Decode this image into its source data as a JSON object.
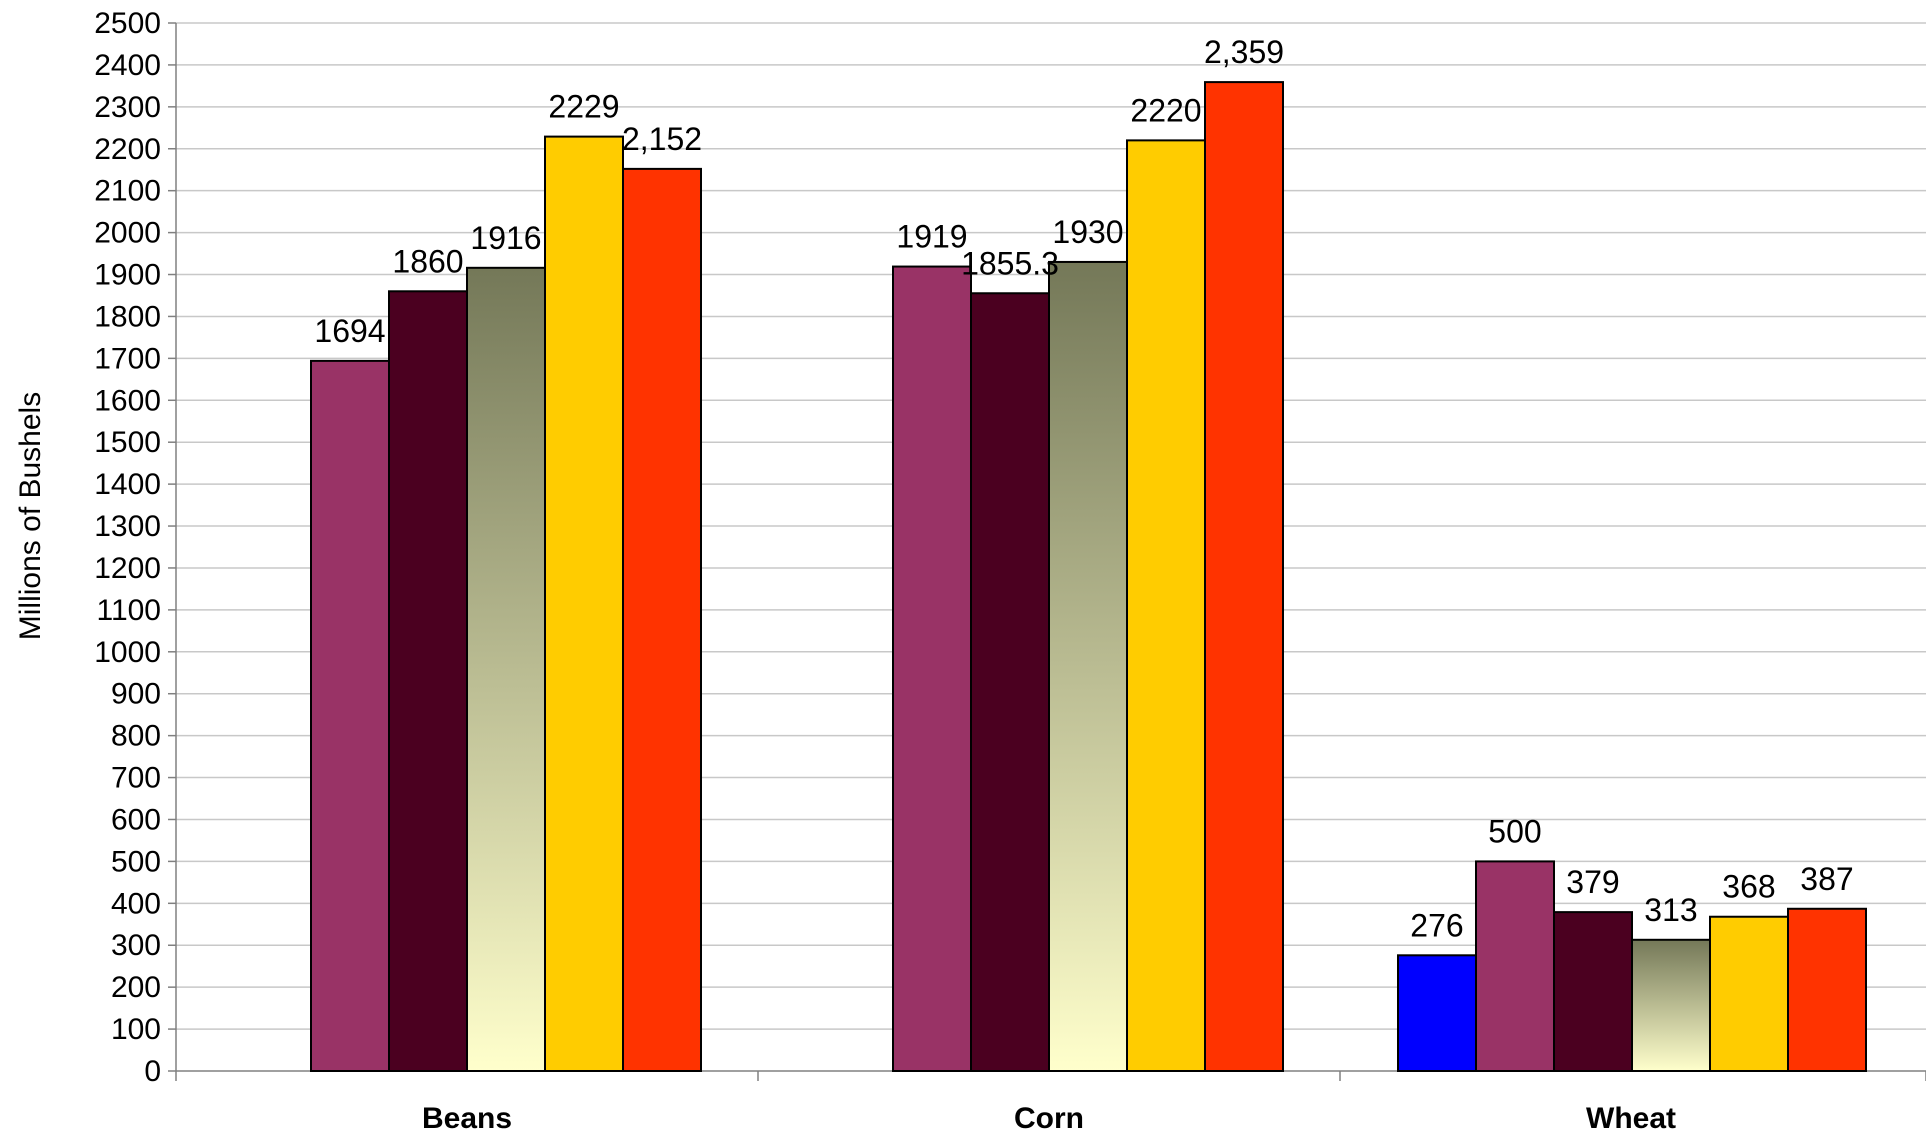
{
  "chart_data": {
    "type": "bar",
    "categories": [
      "Beans",
      "Corn",
      "Wheat"
    ],
    "ylabel": "Millions of Bushels",
    "xlabel": "",
    "ylim": [
      0,
      2500
    ],
    "ytick_step": 100,
    "grid": true,
    "legend": "none",
    "groups": [
      {
        "category": "Beans",
        "bars": [
          {
            "value": 1694,
            "label": "1694",
            "fill": "#993366"
          },
          {
            "value": 1860,
            "label": "1860",
            "fill": "#4b0020"
          },
          {
            "value": 1916,
            "label": "1916",
            "fill": "gradient"
          },
          {
            "value": 2229,
            "label": "2229",
            "fill": "#ffcc00"
          },
          {
            "value": 2152,
            "label": "2,152",
            "fill": "#ff3300"
          }
        ]
      },
      {
        "category": "Corn",
        "bars": [
          {
            "value": 1919,
            "label": "1919",
            "fill": "#993366"
          },
          {
            "value": 1855.3,
            "label": "1855.3",
            "fill": "#4b0020"
          },
          {
            "value": 1930,
            "label": "1930",
            "fill": "gradient"
          },
          {
            "value": 2220,
            "label": "2220",
            "fill": "#ffcc00"
          },
          {
            "value": 2359,
            "label": "2,359",
            "fill": "#ff3300"
          }
        ]
      },
      {
        "category": "Wheat",
        "bars": [
          {
            "value": 276,
            "label": "276",
            "fill": "#0000ff"
          },
          {
            "value": 500,
            "label": "500",
            "fill": "#993366"
          },
          {
            "value": 379,
            "label": "379",
            "fill": "#4b0020"
          },
          {
            "value": 313,
            "label": "313",
            "fill": "gradient"
          },
          {
            "value": 368,
            "label": "368",
            "fill": "#ffcc00"
          },
          {
            "value": 387,
            "label": "387",
            "fill": "#ff3300"
          }
        ]
      }
    ],
    "colors": {
      "gradient_top": "#747858",
      "gradient_bottom": "#ffffcc",
      "bar_border": "#000000",
      "grid": "#c8c8c8",
      "axis": "#808080"
    }
  }
}
